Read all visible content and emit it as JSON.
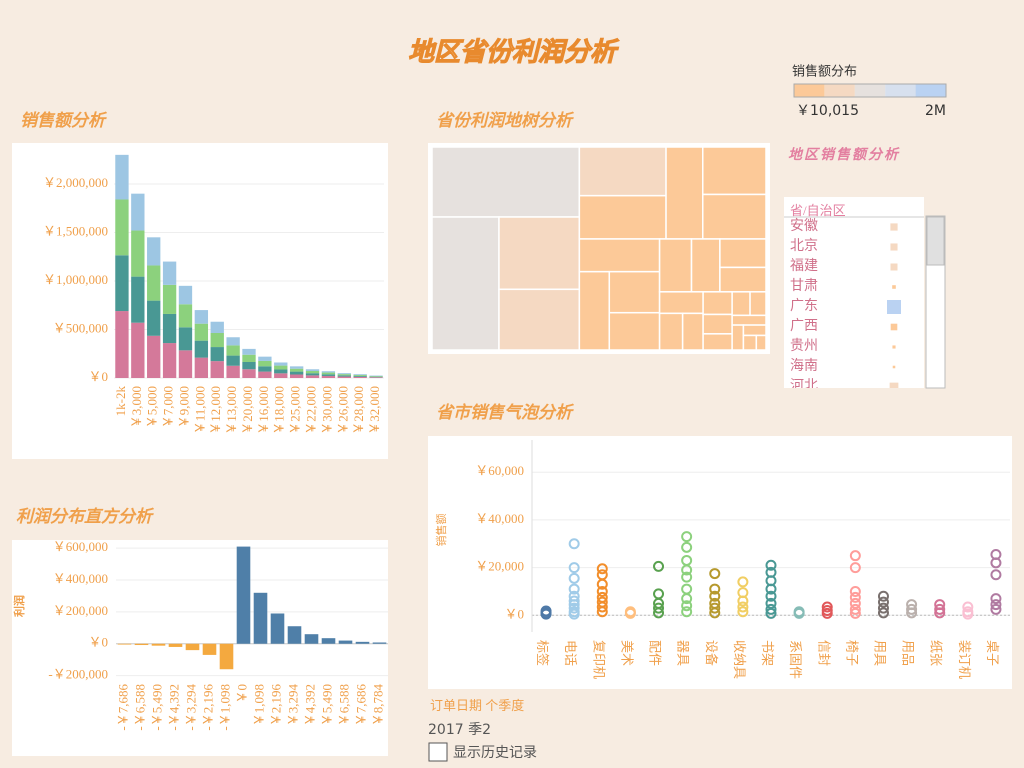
{
  "title": "地区省份利润分析",
  "legend": {
    "title": "销售额分布",
    "min": {
      "value": 10015,
      "label": "￥10,015"
    },
    "max": {
      "value": 2000000,
      "label": "2M"
    },
    "colors": [
      "#fcc998",
      "#f5d9c2",
      "#e6e1de",
      "#d7e0ee",
      "#bad2f2"
    ]
  },
  "sales_chart": {
    "type": "bar",
    "stacked": true,
    "title": "销售额分析",
    "categories": [
      "1k-2k",
      "￥3,000",
      "￥5,000",
      "￥7,000",
      "￥9,000",
      "￥11,000",
      "￥12,000",
      "￥13,000",
      "￥20,000",
      "￥16,000",
      "￥18,000",
      "￥25,000",
      "￥22,000",
      "￥30,000",
      "￥26,000",
      "￥28,000",
      "￥32,000"
    ],
    "series": [
      {
        "color": "#d4799a",
        "values": [
          690000,
          570000,
          435000,
          360000,
          285000,
          210000,
          174000,
          126000,
          90000,
          66000,
          48000,
          36000,
          27000,
          21000,
          15000,
          12000,
          7500
        ]
      },
      {
        "color": "#499894",
        "values": [
          575000,
          475000,
          362500,
          300000,
          237500,
          175000,
          145000,
          105000,
          75000,
          55000,
          40000,
          30000,
          22500,
          17500,
          12500,
          10000,
          6250
        ]
      },
      {
        "color": "#8cd17d",
        "values": [
          575000,
          475000,
          362500,
          300000,
          237500,
          175000,
          145000,
          105000,
          75000,
          55000,
          40000,
          30000,
          22500,
          17500,
          12500,
          10000,
          6250
        ]
      },
      {
        "color": "#9dc6e3",
        "values": [
          460000,
          380000,
          290000,
          240000,
          190000,
          140000,
          116000,
          84000,
          60000,
          44000,
          32000,
          24000,
          18000,
          14000,
          10000,
          8000,
          5000
        ]
      }
    ],
    "ylim": [
      0,
      2350000
    ],
    "yticks": [
      {
        "value": 0,
        "label": "￥0"
      },
      {
        "value": 500000,
        "label": "￥500,000"
      },
      {
        "value": 1000000,
        "label": "￥1,000,000"
      },
      {
        "value": 1500000,
        "label": "￥1,500,000"
      },
      {
        "value": 2000000,
        "label": "￥2,000,000"
      }
    ],
    "grid": true
  },
  "treemap": {
    "type": "treemap",
    "title": "省份利润地树分析",
    "values": [
      1100000,
      950000,
      620000,
      520000,
      450000,
      400000,
      360000,
      320000,
      300000,
      280000,
      250000,
      220000,
      200000,
      180000,
      160000,
      140000,
      120000,
      100000,
      90000,
      80000,
      70000,
      60000,
      50000,
      45000,
      40000,
      35000,
      30000,
      25000,
      20000,
      15000
    ]
  },
  "province_list": {
    "title": "地区销售额分析",
    "header": "省/自治区",
    "items": [
      "安徽",
      "北京",
      "福建",
      "甘肃",
      "广东",
      "广西",
      "贵州",
      "海南",
      "河北"
    ],
    "values": [
      480000,
      460000,
      450000,
      120000,
      1800000,
      400000,
      90000,
      60000,
      700000
    ]
  },
  "profit_chart": {
    "type": "bar",
    "title": "利润分布直方分析",
    "y_label": "利润",
    "categories": [
      "-￥7,686",
      "-￥6,588",
      "-￥5,490",
      "-￥4,392",
      "-￥3,294",
      "-￥2,196",
      "-￥1,098",
      "￥0",
      "￥1,098",
      "￥2,196",
      "￥3,294",
      "￥4,392",
      "￥5,490",
      "￥6,588",
      "￥7,686",
      "￥8,784"
    ],
    "values": [
      -5000,
      -8000,
      -12000,
      -20000,
      -40000,
      -70000,
      -160000,
      610000,
      320000,
      190000,
      110000,
      60000,
      35000,
      20000,
      12000,
      8000
    ],
    "negative_color": "#f4a93f",
    "positive_color": "#4f7fa8",
    "ylim": [
      -215000,
      620000
    ],
    "yticks": [
      {
        "value": -200000,
        "label": "-￥200,000"
      },
      {
        "value": 0,
        "label": "￥0"
      },
      {
        "value": 200000,
        "label": "￥200,000"
      },
      {
        "value": 400000,
        "label": "￥400,000"
      },
      {
        "value": 600000,
        "label": "￥600,000"
      }
    ],
    "grid": true
  },
  "bubble_chart": {
    "type": "scatter",
    "title": "省市销售气泡分析",
    "y_label": "销售额",
    "categories": [
      "标签",
      "电话",
      "复印机",
      "美术",
      "配件",
      "器具",
      "设备",
      "收纳具",
      "书架",
      "系固件",
      "信封",
      "椅子",
      "用具",
      "用品",
      "纸张",
      "装订机",
      "桌子"
    ],
    "series": [
      {
        "color": "#4e79a7",
        "values": [
          500,
          1000,
          1800
        ]
      },
      {
        "color": "#a0cbe8",
        "values": [
          30000,
          20000,
          15500,
          11000,
          8000,
          6000,
          4500,
          3000,
          1500,
          500
        ]
      },
      {
        "color": "#f28e2b",
        "values": [
          19500,
          17000,
          13000,
          10000,
          7500,
          5500,
          3500,
          1500
        ]
      },
      {
        "color": "#ffbe7d",
        "values": [
          800,
          1500
        ]
      },
      {
        "color": "#59a14f",
        "values": [
          20500,
          9000,
          5000,
          3000,
          1000
        ]
      },
      {
        "color": "#8cd17d",
        "values": [
          33000,
          28500,
          23000,
          19000,
          16000,
          11000,
          7000,
          4000,
          1500
        ]
      },
      {
        "color": "#b6992d",
        "values": [
          17500,
          11000,
          8000,
          5000,
          3000,
          1000
        ]
      },
      {
        "color": "#f1ce63",
        "values": [
          14000,
          9500,
          6000,
          3500,
          1500
        ]
      },
      {
        "color": "#499894",
        "values": [
          21000,
          18000,
          14500,
          11000,
          8000,
          5000,
          2500,
          800
        ]
      },
      {
        "color": "#86bcb6",
        "values": [
          800,
          1500
        ]
      },
      {
        "color": "#e15759",
        "values": [
          800,
          2000,
          3500
        ]
      },
      {
        "color": "#ff9d9a",
        "values": [
          25000,
          20000,
          10000,
          7500,
          5000,
          2500,
          800
        ]
      },
      {
        "color": "#79706e",
        "values": [
          8000,
          5500,
          3000,
          1000
        ]
      },
      {
        "color": "#bab0ac",
        "values": [
          4500,
          2500,
          1000
        ]
      },
      {
        "color": "#d37295",
        "values": [
          4500,
          2500,
          1000
        ]
      },
      {
        "color": "#fabfd2",
        "values": [
          3500,
          1500,
          500
        ]
      },
      {
        "color": "#b07aa1",
        "values": [
          25500,
          22000,
          17000,
          7000,
          4500,
          2500
        ]
      }
    ],
    "ylim": [
      -7000,
      73500
    ],
    "yticks": [
      {
        "value": 0,
        "label": "￥0"
      },
      {
        "value": 20000,
        "label": "￥20,000"
      },
      {
        "value": 40000,
        "label": "￥40,000"
      },
      {
        "value": 60000,
        "label": "￥60,000"
      }
    ],
    "grid": true
  },
  "filter": {
    "label": "订单日期 个季度",
    "value": "2017 季2",
    "checkbox": "显示历史记录"
  }
}
